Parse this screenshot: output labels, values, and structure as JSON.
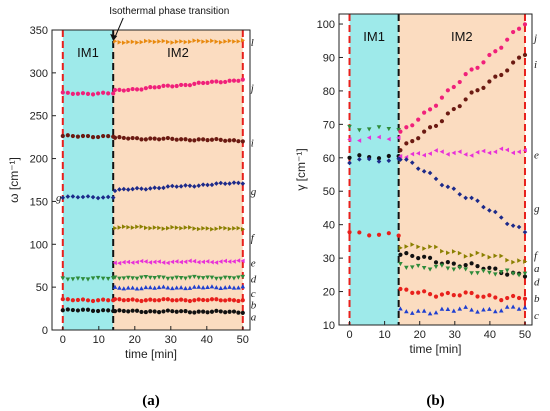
{
  "colors": {
    "im1_bg": "#9eeaea",
    "im2_bg": "#fbdcc0",
    "red_dash": "#e8201c",
    "black_dash": "#111111"
  },
  "chart_data": [
    {
      "type": "scatter",
      "caption": "(a)",
      "xlabel": "time [min]",
      "ylabel": "ω [cm⁻¹]",
      "xlim": [
        -3,
        52
      ],
      "ylim": [
        0,
        350
      ],
      "xticks": [
        0,
        10,
        20,
        30,
        40,
        50
      ],
      "yticks": [
        0,
        50,
        100,
        150,
        200,
        250,
        300,
        350
      ],
      "regions": [
        {
          "label": "IM1",
          "from": 0,
          "to": 14,
          "color": "#9eeaea"
        },
        {
          "label": "IM2",
          "from": 14,
          "to": 50,
          "color": "#fbdcc0"
        }
      ],
      "vlines": [
        {
          "x": 0,
          "color": "#e8201c"
        },
        {
          "x": 14,
          "color": "#111111"
        },
        {
          "x": 50,
          "color": "#e8201c"
        }
      ],
      "annotation": {
        "text": "Isothermal phase transition",
        "x": 14
      },
      "series": [
        {
          "label": "a",
          "color": "#111111",
          "marker": "circle",
          "im1": {
            "x": [
              0,
              14
            ],
            "y": 23,
            "n": 11
          },
          "im2": {
            "x": [
              14.5,
              50
            ],
            "y": [
              22,
              21
            ],
            "n": 30
          }
        },
        {
          "label": "b",
          "color": "#e8201c",
          "marker": "circle",
          "im1": {
            "x": [
              0,
              14
            ],
            "y": 35,
            "n": 11
          },
          "im2": {
            "x": [
              14.5,
              50
            ],
            "y": [
              35,
              35
            ],
            "n": 30
          }
        },
        {
          "label": "c",
          "color": "#1f3fd0",
          "marker": "triangle-up",
          "im1": null,
          "im2": {
            "x": [
              14.5,
              50
            ],
            "y": [
              49,
              50
            ],
            "n": 30
          }
        },
        {
          "label": "d",
          "color": "#2e8b3a",
          "marker": "triangle-down",
          "im1": {
            "x": [
              0,
              14
            ],
            "y": 60,
            "n": 11
          },
          "im2": {
            "x": [
              14.5,
              50
            ],
            "y": [
              61,
              61
            ],
            "n": 30
          }
        },
        {
          "label": "e",
          "color": "#e830d8",
          "marker": "triangle-left",
          "im1": null,
          "im2": {
            "x": [
              14.5,
              50
            ],
            "y": [
              79,
              80
            ],
            "n": 30
          }
        },
        {
          "label": "f",
          "color": "#8b8000",
          "marker": "triangle-right",
          "im1": null,
          "im2": {
            "x": [
              14.5,
              50
            ],
            "y": [
              120,
              118
            ],
            "n": 30
          }
        },
        {
          "label": "g",
          "color": "#1c2a8a",
          "marker": "diamond",
          "im1": {
            "x": [
              0,
              14
            ],
            "y": 155,
            "n": 11
          },
          "im2": {
            "x": [
              14.5,
              50
            ],
            "y": [
              163,
              172
            ],
            "n": 30
          }
        },
        {
          "label": "i",
          "color": "#6b1a12",
          "marker": "circle",
          "im1": {
            "x": [
              0,
              14
            ],
            "y": 226,
            "n": 11
          },
          "im2": {
            "x": [
              14.5,
              50
            ],
            "y": [
              224,
              221
            ],
            "n": 30
          }
        },
        {
          "label": "j",
          "color": "#f0207a",
          "marker": "circle",
          "im1": {
            "x": [
              0,
              14
            ],
            "y": 276,
            "n": 11
          },
          "im2": {
            "x": [
              14.5,
              50
            ],
            "y": [
              279,
              292
            ],
            "n": 30
          }
        },
        {
          "label": "l",
          "color": "#e88a10",
          "marker": "triangle-right",
          "im1": null,
          "im2": {
            "x": [
              14.5,
              50
            ],
            "y": [
              336,
              337
            ],
            "n": 30
          }
        }
      ]
    },
    {
      "type": "scatter",
      "caption": "(b)",
      "xlabel": "time [min]",
      "ylabel": "γ [cm⁻¹]",
      "xlim": [
        -3,
        52
      ],
      "ylim": [
        10,
        103
      ],
      "xticks": [
        0,
        10,
        20,
        30,
        40,
        50
      ],
      "yticks": [
        10,
        20,
        30,
        40,
        50,
        60,
        70,
        80,
        90,
        100
      ],
      "regions": [
        {
          "label": "IM1",
          "from": 0,
          "to": 14,
          "color": "#9eeaea"
        },
        {
          "label": "IM2",
          "from": 14,
          "to": 50,
          "color": "#fbdcc0"
        }
      ],
      "vlines": [
        {
          "x": 0,
          "color": "#e8201c"
        },
        {
          "x": 14,
          "color": "#111111"
        },
        {
          "x": 50,
          "color": "#e8201c"
        }
      ],
      "series": [
        {
          "label": "a",
          "color": "#111111",
          "marker": "circle",
          "im1": {
            "x": [
              0,
              14
            ],
            "y": 60,
            "n": 6
          },
          "im2": {
            "x": [
              14.5,
              50
            ],
            "y": [
              31,
              25
            ],
            "n": 22
          }
        },
        {
          "label": "b",
          "color": "#e8201c",
          "marker": "circle",
          "im1": {
            "x": [
              0,
              14
            ],
            "y": 37,
            "n": 6
          },
          "im2": {
            "x": [
              14.5,
              50
            ],
            "y": [
              20,
              18
            ],
            "n": 22
          }
        },
        {
          "label": "c",
          "color": "#1f3fd0",
          "marker": "triangle-up",
          "im1": null,
          "im2": {
            "x": [
              14.5,
              50
            ],
            "y": [
              14,
              15
            ],
            "n": 22
          }
        },
        {
          "label": "d",
          "color": "#2e8b3a",
          "marker": "triangle-down",
          "im1": {
            "x": [
              0,
              14
            ],
            "y": 69,
            "n": 6
          },
          "im2": {
            "x": [
              14.5,
              50
            ],
            "y": [
              28,
              25
            ],
            "n": 22
          }
        },
        {
          "label": "e",
          "color": "#e830d8",
          "marker": "triangle-left",
          "im1": {
            "x": [
              0,
              14
            ],
            "y": 66,
            "n": 6
          },
          "im2": {
            "x": [
              14.5,
              50
            ],
            "y": [
              61,
              62
            ],
            "n": 22
          }
        },
        {
          "label": "f",
          "color": "#8b8000",
          "marker": "triangle-right",
          "im1": null,
          "im2": {
            "x": [
              14.5,
              50
            ],
            "y": [
              34,
              29
            ],
            "n": 22
          }
        },
        {
          "label": "g",
          "color": "#1c2a8a",
          "marker": "diamond",
          "im1": {
            "x": [
              0,
              14
            ],
            "y": 59,
            "n": 6
          },
          "im2": {
            "x": [
              14.5,
              50
            ],
            "y": [
              60,
              38
            ],
            "n": 22
          }
        },
        {
          "label": "i",
          "color": "#6b1a12",
          "marker": "circle",
          "im1": null,
          "im2": {
            "x": [
              14.5,
              50
            ],
            "y": [
              62,
              91
            ],
            "n": 22
          }
        },
        {
          "label": "j",
          "color": "#f0207a",
          "marker": "circle",
          "im1": null,
          "im2": {
            "x": [
              14.5,
              50
            ],
            "y": [
              67,
              100
            ],
            "n": 22
          }
        }
      ]
    }
  ]
}
